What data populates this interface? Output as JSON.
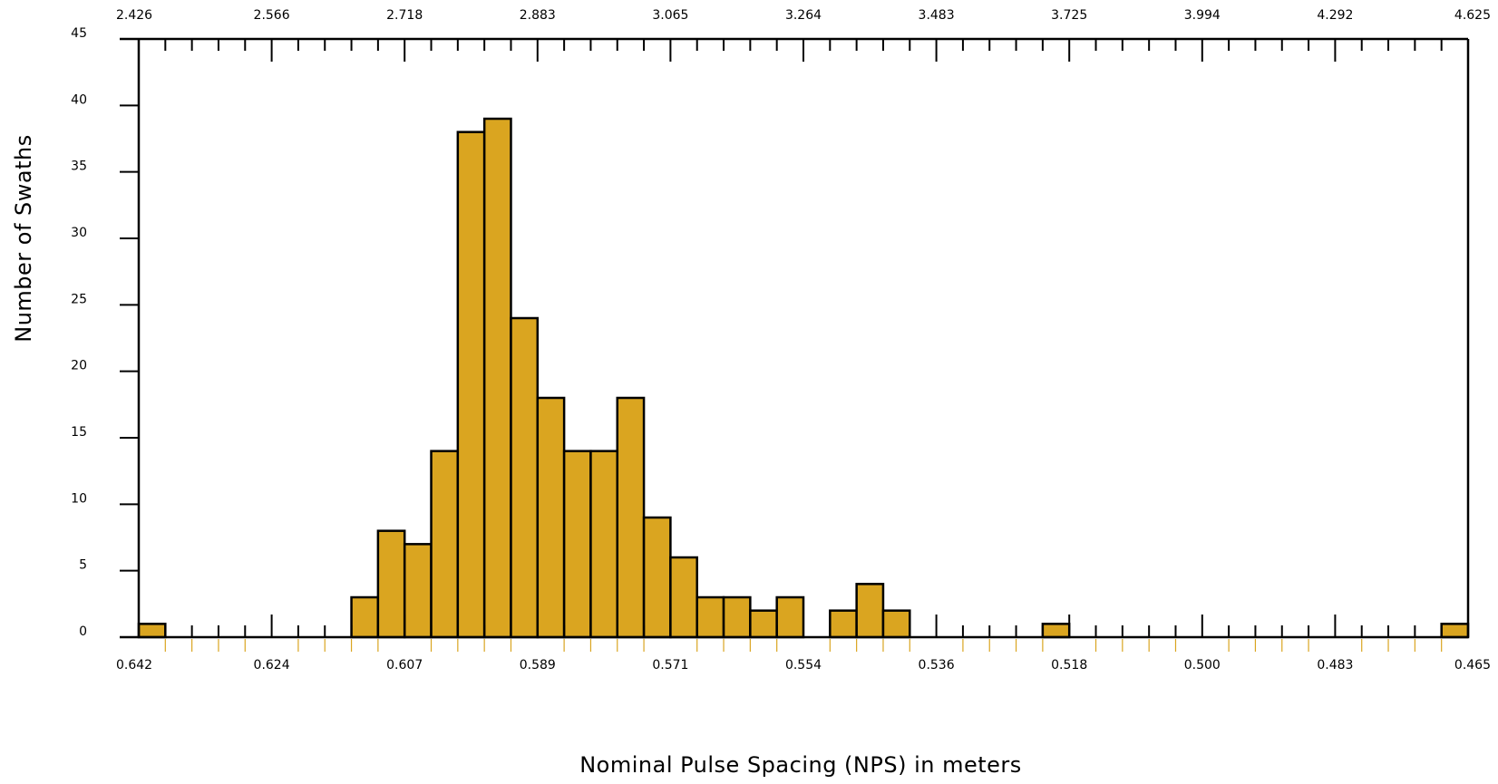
{
  "chart_data": {
    "type": "bar",
    "title": "",
    "xlabel": "Nominal Pulse Spacing (NPS) in meters",
    "ylabel": "Number of Swaths",
    "ylim": [
      0,
      45
    ],
    "y_ticks": [
      "0",
      "5",
      "10",
      "15",
      "20",
      "25",
      "30",
      "35",
      "40",
      "45"
    ],
    "x_bottom_ticks": [
      "0.642",
      "0.624",
      "0.607",
      "0.589",
      "0.571",
      "0.554",
      "0.536",
      "0.518",
      "0.500",
      "0.483",
      "0.465"
    ],
    "x_top_ticks": [
      "2.426",
      "2.566",
      "2.718",
      "2.883",
      "3.065",
      "3.264",
      "3.483",
      "3.725",
      "3.994",
      "4.292",
      "4.625"
    ],
    "bin_count": 50,
    "values": [
      1,
      0,
      0,
      0,
      0,
      0,
      0,
      0,
      3,
      8,
      7,
      14,
      38,
      39,
      24,
      18,
      14,
      14,
      18,
      9,
      6,
      3,
      3,
      2,
      3,
      0,
      2,
      4,
      2,
      0,
      0,
      0,
      0,
      0,
      1,
      0,
      0,
      0,
      0,
      0,
      0,
      0,
      0,
      0,
      0,
      0,
      0,
      0,
      0,
      1
    ],
    "bar_color": "#DAA520",
    "bar_edge_color": "#000000",
    "minor_tick_color": "#DAA520",
    "grid": false,
    "legend": "none"
  }
}
